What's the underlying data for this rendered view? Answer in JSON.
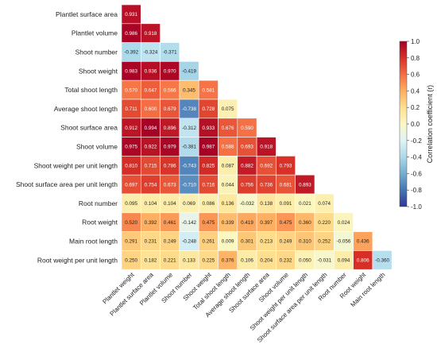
{
  "chart_data": {
    "type": "heatmap",
    "layout": "lower-triangle",
    "title": "",
    "row_labels": [
      "Plantlet surface area",
      "Plantlet volume",
      "Shoot number",
      "Shoot weight",
      "Total shoot length",
      "Average shoot length",
      "Shoot surface area",
      "Shoot volume",
      "Shoot weight per unit length",
      "Shoot surface area per unit length",
      "Root number",
      "Root weight",
      "Main root length",
      "Root weight per unit length"
    ],
    "column_labels": [
      "Plantlet weight",
      "Plantlet surface area",
      "Plantlet volume",
      "Shoot number",
      "Shoot weight",
      "Total shoot length",
      "Average shoot length",
      "Shoot surface area",
      "Shoot volume",
      "Shoot weight per unit length",
      "Shoot surface area per unit length",
      "Root number",
      "Root weight",
      "Main root length"
    ],
    "values": [
      [
        "0.931"
      ],
      [
        "0.986",
        "0.918"
      ],
      [
        "-0.392",
        "-0.324",
        "-0.371"
      ],
      [
        "0.983",
        "0.936",
        "0.970",
        "-0.419"
      ],
      [
        "0.570",
        "0.647",
        "0.566",
        "0.345",
        "0.581"
      ],
      [
        "0.711",
        "0.600",
        "0.679",
        "-0.738",
        "0.728",
        "0.075"
      ],
      [
        "0.912",
        "0.994",
        "0.896",
        "-0.312",
        "0.933",
        "0.676",
        "0.590"
      ],
      [
        "0.975",
        "0.922",
        "0.979",
        "-0.381",
        "0.987",
        "0.588",
        "0.693",
        "0.918"
      ],
      [
        "0.810",
        "0.715",
        "0.786",
        "-0.743",
        "0.825",
        "0.087",
        "0.882",
        "0.692",
        "0.793"
      ],
      [
        "0.697",
        "0.754",
        "0.673",
        "-0.710",
        "0.716",
        "0.044",
        "0.756",
        "0.736",
        "0.681",
        "0.893"
      ],
      [
        "0.095",
        "0.104",
        "0.104",
        "0.069",
        "0.086",
        "0.136",
        "-0.032",
        "0.138",
        "0.091",
        "0.021",
        "0.074"
      ],
      [
        "0.520",
        "0.392",
        "0.461",
        "-0.142",
        "0.475",
        "0.339",
        "0.419",
        "0.397",
        "0.475",
        "0.360",
        "0.220",
        "0.024"
      ],
      [
        "0.291",
        "0.231",
        "0.249",
        "-0.248",
        "0.261",
        "0.009",
        "0.301",
        "0.213",
        "0.249",
        "0.310",
        "0.252",
        "-0.056",
        "0.436"
      ],
      [
        "0.250",
        "0.182",
        "0.221",
        "0.133",
        "0.225",
        "0.376",
        "0.106",
        "0.204",
        "0.232",
        "0.050",
        "-0.031",
        "0.094",
        "0.806",
        "-0.360"
      ]
    ],
    "colorbar": {
      "label": "Correlation coefficient (r)",
      "range": [
        -1.0,
        1.0
      ],
      "ticks": [
        "1.0",
        "0.8",
        "0.6",
        "0.4",
        "0.2",
        "0.0",
        "-0.2",
        "-0.4",
        "-0.6",
        "-0.8",
        "-1.0"
      ],
      "colormap": "diverging red-yellow-blue",
      "colors": {
        "high": "#a50026",
        "mid": "#fbf8c3",
        "low": "#313695"
      }
    }
  }
}
